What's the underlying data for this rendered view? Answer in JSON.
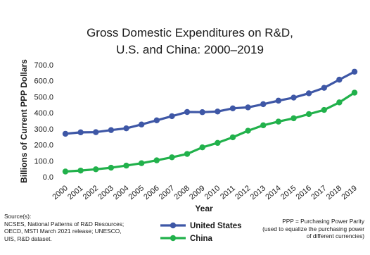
{
  "chart_data": {
    "type": "line",
    "title_lines": [
      "Gross Domestic Expenditures on R&D,",
      "U.S. and China: 2000–2019"
    ],
    "xlabel": "Year",
    "ylabel": "Billions of Current PPP Dollars",
    "ylim": [
      0,
      700
    ],
    "yticks": [
      "0.0",
      "100.0",
      "200.0",
      "300.0",
      "400.0",
      "500.0",
      "600.0",
      "700.0"
    ],
    "categories": [
      "2000",
      "2001",
      "2002",
      "2003",
      "2004",
      "2005",
      "2006",
      "2007",
      "2008",
      "2009",
      "2010",
      "2011",
      "2012",
      "2013",
      "2014",
      "2015",
      "2016",
      "2017",
      "2018",
      "2019"
    ],
    "series": [
      {
        "name": "United States",
        "color": "#3e57a6",
        "values": [
          269,
          278,
          279,
          292,
          303,
          327,
          353,
          379,
          405,
          404,
          408,
          428,
          434,
          454,
          476,
          495,
          522,
          556,
          607,
          657
        ]
      },
      {
        "name": "China",
        "color": "#21b14b",
        "values": [
          33,
          39,
          47,
          57,
          70,
          85,
          103,
          122,
          143,
          184,
          212,
          247,
          288,
          322,
          345,
          366,
          392,
          418,
          465,
          526
        ]
      }
    ],
    "grid": false,
    "legend_position": "bottom"
  },
  "footer": {
    "source_lines": [
      "Source(s):",
      "NCSES, National Patterns of R&D Resources;",
      "OECD, MSTI March 2021 release; UNESCO,",
      "UIS, R&D dataset."
    ],
    "note_lines": [
      "PPP = Purchasing Power Parity",
      "(used to equalize the purchasing power",
      "of different currencies)"
    ]
  }
}
